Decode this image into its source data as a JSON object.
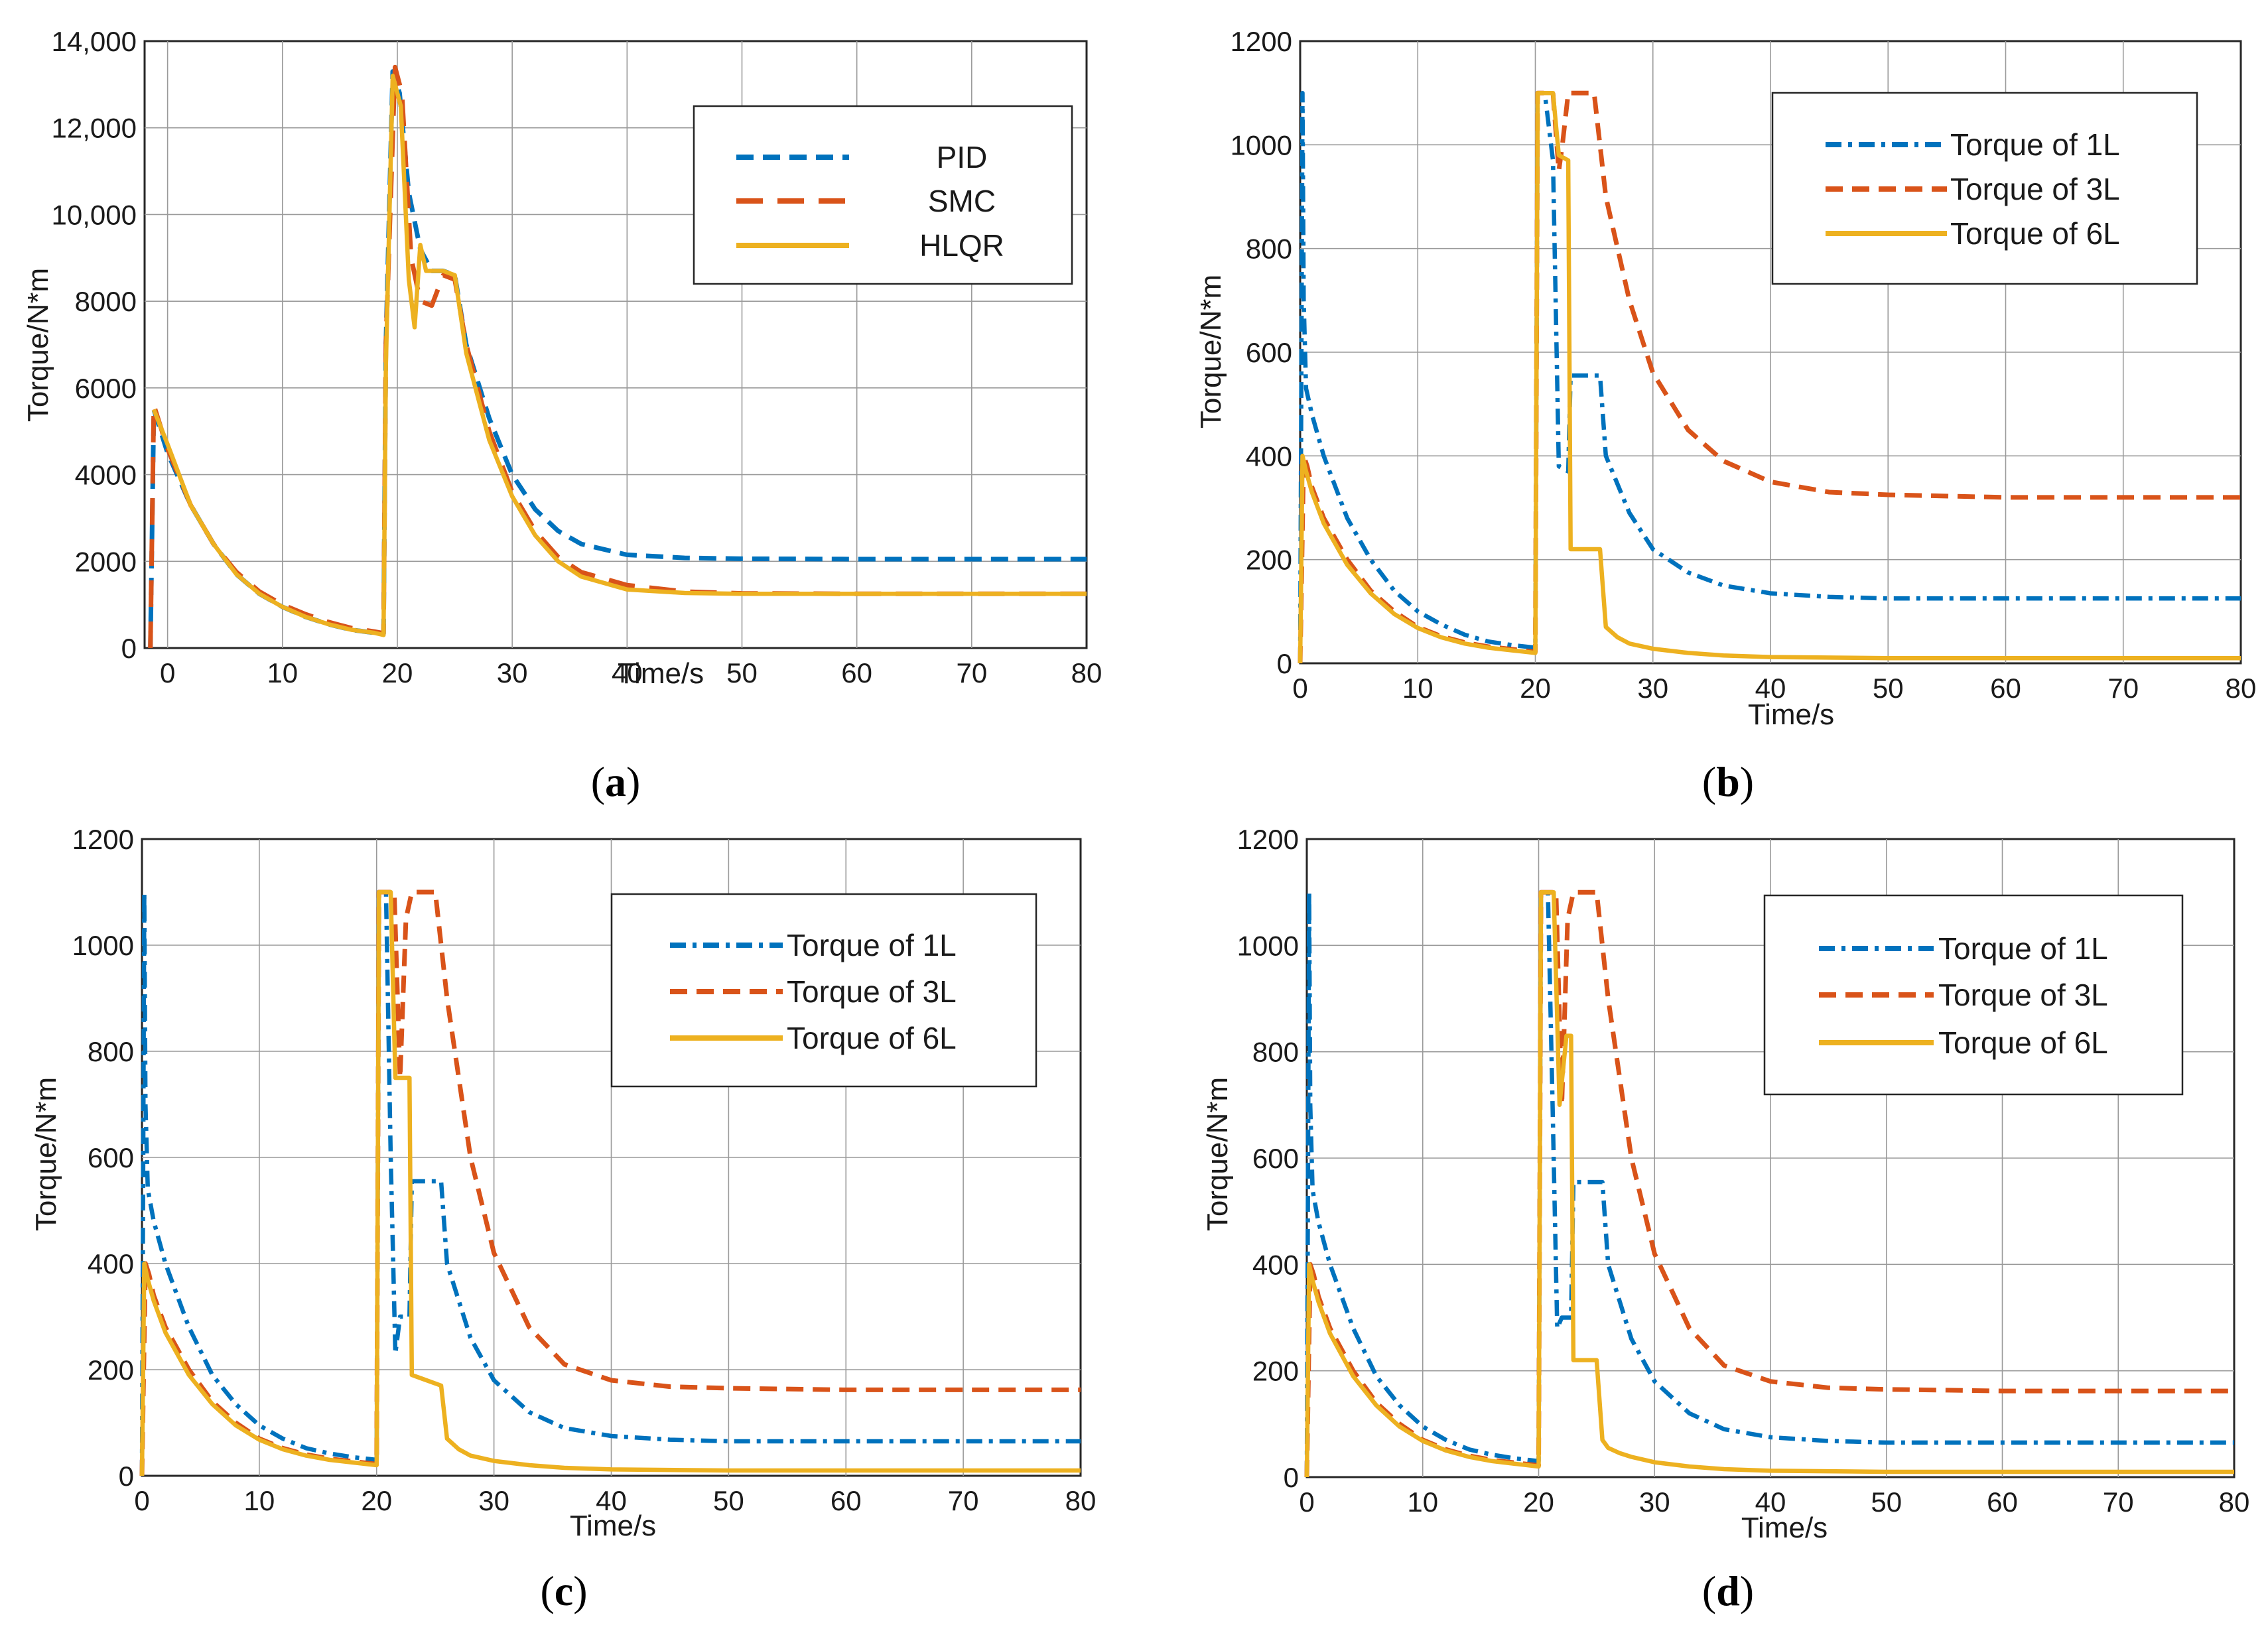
{
  "colors": {
    "blue": "#0072BD",
    "orange": "#D95319",
    "yellow": "#EDB120"
  },
  "chart_data": [
    {
      "id": "a",
      "type": "line",
      "caption_letter": "a",
      "xlabel": "Time/s",
      "ylabel": "Torque/N*m",
      "xlim": [
        -2,
        80
      ],
      "ylim": [
        0,
        14000
      ],
      "xticks": [
        0,
        10,
        20,
        30,
        40,
        50,
        60,
        70,
        80
      ],
      "yticks": [
        0,
        2000,
        4000,
        6000,
        8000,
        10000,
        12000,
        14000
      ],
      "ytick_labels": [
        "0",
        "2000",
        "4000",
        "6000",
        "8000",
        "10,000",
        "12,000",
        "14,000"
      ],
      "grid": "on",
      "legend_position": "top-right",
      "series": [
        {
          "name": "PID",
          "style": "dash",
          "color": "#0072BD",
          "x": [
            -1.5,
            -1.2,
            0,
            2,
            4,
            6,
            8,
            10,
            12,
            14,
            16,
            18,
            18.8,
            19,
            19.6,
            20.2,
            21,
            22,
            23,
            24,
            25,
            26,
            28,
            30,
            32,
            34,
            36,
            40,
            45,
            50,
            60,
            70,
            80
          ],
          "y": [
            0,
            5500,
            4500,
            3300,
            2400,
            1700,
            1250,
            950,
            720,
            550,
            420,
            350,
            330,
            7000,
            13300,
            12800,
            10500,
            9200,
            8700,
            8700,
            8600,
            7000,
            5300,
            4000,
            3200,
            2700,
            2400,
            2150,
            2080,
            2060,
            2050,
            2050,
            2050
          ]
        },
        {
          "name": "SMC",
          "style": "longdash",
          "color": "#D95319",
          "x": [
            -1.5,
            -1.2,
            0,
            2,
            4,
            6,
            8,
            10,
            12,
            14,
            16,
            18,
            18.8,
            19,
            19.8,
            20.4,
            21.2,
            22,
            23,
            24,
            25,
            26,
            28,
            30,
            32,
            34,
            36,
            40,
            45,
            50,
            60,
            70,
            80
          ],
          "y": [
            0,
            5600,
            4600,
            3300,
            2400,
            1750,
            1300,
            1000,
            780,
            600,
            460,
            380,
            340,
            7000,
            13400,
            12800,
            9000,
            8000,
            7900,
            8600,
            8500,
            7000,
            5000,
            3600,
            2700,
            2100,
            1750,
            1450,
            1300,
            1260,
            1250,
            1250,
            1250
          ]
        },
        {
          "name": "HLQR",
          "style": "solid",
          "color": "#EDB120",
          "x": [
            -1.2,
            0,
            2,
            4,
            6,
            8,
            10,
            12,
            14,
            16,
            18,
            18.8,
            19,
            19.6,
            20.3,
            21,
            21.5,
            22,
            22.5,
            23,
            24,
            25,
            26,
            28,
            30,
            32,
            34,
            36,
            40,
            45,
            50,
            60,
            70,
            80
          ],
          "y": [
            5500,
            4700,
            3300,
            2400,
            1700,
            1250,
            950,
            720,
            550,
            420,
            350,
            300,
            6500,
            13200,
            12500,
            8500,
            7400,
            9300,
            8700,
            8700,
            8700,
            8600,
            6800,
            4800,
            3500,
            2600,
            2000,
            1650,
            1350,
            1270,
            1250,
            1250,
            1250,
            1250
          ]
        }
      ]
    },
    {
      "id": "b",
      "type": "line",
      "caption_letter": "b",
      "xlabel": "Time/s",
      "ylabel": "Torque/N*m",
      "xlim": [
        0,
        80
      ],
      "ylim": [
        0,
        1200
      ],
      "xticks": [
        0,
        10,
        20,
        30,
        40,
        50,
        60,
        70,
        80
      ],
      "yticks": [
        0,
        200,
        400,
        600,
        800,
        1000,
        1200
      ],
      "ytick_labels": [
        "0",
        "200",
        "400",
        "600",
        "800",
        "1000",
        "1200"
      ],
      "grid": "on",
      "legend_position": "top-right",
      "series": [
        {
          "name": "Torque of 1L",
          "style": "dashdot",
          "color": "#0072BD",
          "x": [
            0,
            0.2,
            0.3,
            0.5,
            1,
            2,
            4,
            6,
            8,
            10,
            12,
            14,
            16,
            18,
            20,
            20.2,
            20.8,
            21.5,
            22,
            22.8,
            23,
            25.5,
            26,
            28,
            30,
            33,
            36,
            40,
            45,
            50,
            60,
            70,
            80
          ],
          "y": [
            0,
            1100,
            700,
            530,
            480,
            400,
            280,
            200,
            140,
            100,
            75,
            55,
            42,
            35,
            30,
            1100,
            1100,
            970,
            380,
            370,
            555,
            555,
            400,
            290,
            220,
            175,
            150,
            135,
            128,
            125,
            125,
            125,
            125
          ]
        },
        {
          "name": "Torque of 3L",
          "style": "dash",
          "color": "#D95319",
          "x": [
            0,
            0.3,
            0.6,
            1,
            2,
            4,
            6,
            8,
            10,
            12,
            14,
            16,
            18,
            20,
            20.2,
            21.5,
            22,
            22.3,
            22.8,
            25,
            26,
            28,
            30,
            33,
            36,
            40,
            45,
            50,
            60,
            70,
            80
          ],
          "y": [
            0,
            400,
            380,
            340,
            280,
            200,
            140,
            100,
            70,
            52,
            40,
            32,
            27,
            22,
            1100,
            1100,
            950,
            1000,
            1100,
            1100,
            900,
            700,
            560,
            450,
            390,
            350,
            330,
            325,
            320,
            320,
            320
          ]
        },
        {
          "name": "Torque of 6L",
          "style": "solid",
          "color": "#EDB120",
          "x": [
            0,
            0.2,
            0.5,
            1,
            2,
            4,
            6,
            8,
            10,
            12,
            14,
            16,
            18,
            20,
            20.2,
            21.5,
            22,
            22.8,
            23,
            25.5,
            26,
            27,
            28,
            30,
            33,
            36,
            40,
            50,
            60,
            70,
            80
          ],
          "y": [
            0,
            400,
            370,
            330,
            270,
            190,
            135,
            95,
            68,
            50,
            38,
            30,
            25,
            20,
            1100,
            1100,
            980,
            970,
            220,
            220,
            70,
            50,
            38,
            28,
            20,
            15,
            12,
            10,
            10,
            10,
            10
          ]
        }
      ]
    },
    {
      "id": "c",
      "type": "line",
      "caption_letter": "c",
      "xlabel": "Time/s",
      "ylabel": "Torque/N*m",
      "xlim": [
        0,
        80
      ],
      "ylim": [
        0,
        1200
      ],
      "xticks": [
        0,
        10,
        20,
        30,
        40,
        50,
        60,
        70,
        80
      ],
      "yticks": [
        0,
        200,
        400,
        600,
        800,
        1000,
        1200
      ],
      "ytick_labels": [
        "0",
        "200",
        "400",
        "600",
        "800",
        "1000",
        "1200"
      ],
      "grid": "on",
      "legend_position": "top-right",
      "series": [
        {
          "name": "Torque of 1L",
          "style": "dashdot",
          "color": "#0072BD",
          "x": [
            0,
            0.2,
            0.3,
            0.5,
            1,
            2,
            4,
            6,
            8,
            10,
            12,
            14,
            16,
            18,
            20,
            20.2,
            20.8,
            21.2,
            21.6,
            22,
            22.8,
            23,
            25.5,
            26,
            28,
            30,
            33,
            36,
            40,
            45,
            50,
            60,
            70,
            80
          ],
          "y": [
            0,
            1100,
            700,
            540,
            480,
            400,
            280,
            190,
            135,
            95,
            70,
            52,
            42,
            35,
            30,
            1100,
            1100,
            600,
            230,
            300,
            300,
            555,
            555,
            400,
            260,
            180,
            120,
            90,
            75,
            68,
            65,
            65,
            65,
            65
          ]
        },
        {
          "name": "Torque of 3L",
          "style": "dash",
          "color": "#D95319",
          "x": [
            0,
            0.3,
            0.6,
            1,
            2,
            4,
            6,
            8,
            10,
            12,
            14,
            16,
            18,
            20,
            20.2,
            21.5,
            22,
            22.5,
            23,
            25,
            26,
            28,
            30,
            33,
            36,
            40,
            45,
            50,
            60,
            70,
            80
          ],
          "y": [
            0,
            400,
            380,
            340,
            280,
            200,
            140,
            100,
            70,
            52,
            40,
            32,
            27,
            22,
            1100,
            1100,
            750,
            1050,
            1100,
            1100,
            900,
            600,
            420,
            280,
            210,
            180,
            168,
            165,
            162,
            162,
            162
          ]
        },
        {
          "name": "Torque of 6L",
          "style": "solid",
          "color": "#EDB120",
          "x": [
            0,
            0.2,
            0.5,
            1,
            2,
            4,
            6,
            8,
            10,
            12,
            14,
            16,
            18,
            20,
            20.2,
            21.2,
            21.6,
            22.8,
            23,
            25.5,
            26,
            27,
            28,
            30,
            33,
            36,
            40,
            50,
            60,
            70,
            80
          ],
          "y": [
            0,
            400,
            370,
            330,
            270,
            190,
            135,
            95,
            68,
            50,
            38,
            30,
            25,
            20,
            1100,
            1100,
            750,
            750,
            190,
            170,
            70,
            50,
            38,
            28,
            20,
            15,
            12,
            10,
            10,
            10,
            10
          ]
        }
      ]
    },
    {
      "id": "d",
      "type": "line",
      "caption_letter": "d",
      "xlabel": "Time/s",
      "ylabel": "Torque/N*m",
      "xlim": [
        0,
        80
      ],
      "ylim": [
        0,
        1200
      ],
      "xticks": [
        0,
        10,
        20,
        30,
        40,
        50,
        60,
        70,
        80
      ],
      "yticks": [
        0,
        200,
        400,
        600,
        800,
        1000,
        1200
      ],
      "ytick_labels": [
        "0",
        "200",
        "400",
        "600",
        "800",
        "1000",
        "1200"
      ],
      "grid": "on",
      "legend_position": "top-right",
      "series": [
        {
          "name": "Torque of 1L",
          "style": "dashdot",
          "color": "#0072BD",
          "x": [
            0,
            0.2,
            0.3,
            0.5,
            1,
            2,
            4,
            6,
            8,
            10,
            12,
            14,
            16,
            18,
            20,
            20.2,
            20.8,
            21.2,
            21.6,
            22,
            22.8,
            23,
            25.5,
            26,
            28,
            30,
            33,
            36,
            40,
            45,
            50,
            60,
            70,
            80
          ],
          "y": [
            0,
            1100,
            700,
            540,
            480,
            400,
            280,
            190,
            135,
            95,
            70,
            52,
            42,
            35,
            30,
            1100,
            1100,
            700,
            280,
            300,
            300,
            555,
            555,
            400,
            260,
            180,
            120,
            90,
            75,
            68,
            65,
            65,
            65,
            65
          ]
        },
        {
          "name": "Torque of 3L",
          "style": "dash",
          "color": "#D95319",
          "x": [
            0,
            0.3,
            0.6,
            1,
            2,
            4,
            6,
            8,
            10,
            12,
            14,
            16,
            18,
            20,
            20.2,
            21.5,
            22,
            22.5,
            23,
            25,
            26,
            28,
            30,
            33,
            36,
            40,
            45,
            50,
            60,
            70,
            80
          ],
          "y": [
            0,
            400,
            380,
            340,
            280,
            200,
            140,
            100,
            70,
            52,
            40,
            32,
            27,
            22,
            1100,
            1100,
            700,
            1050,
            1100,
            1100,
            900,
            600,
            420,
            280,
            210,
            180,
            168,
            165,
            162,
            162,
            162
          ]
        },
        {
          "name": "Torque of 6L",
          "style": "solid",
          "color": "#EDB120",
          "x": [
            0,
            0.2,
            0.5,
            1,
            2,
            4,
            6,
            8,
            10,
            12,
            14,
            16,
            18,
            20,
            20.2,
            21.3,
            21.8,
            22.4,
            22.8,
            23,
            25,
            25.5,
            26,
            27,
            28,
            30,
            33,
            36,
            40,
            50,
            60,
            70,
            80
          ],
          "y": [
            0,
            400,
            370,
            330,
            270,
            190,
            135,
            95,
            68,
            50,
            38,
            30,
            25,
            20,
            1100,
            1100,
            700,
            830,
            830,
            220,
            220,
            70,
            55,
            45,
            38,
            28,
            20,
            15,
            12,
            10,
            10,
            10,
            10
          ]
        }
      ]
    }
  ]
}
